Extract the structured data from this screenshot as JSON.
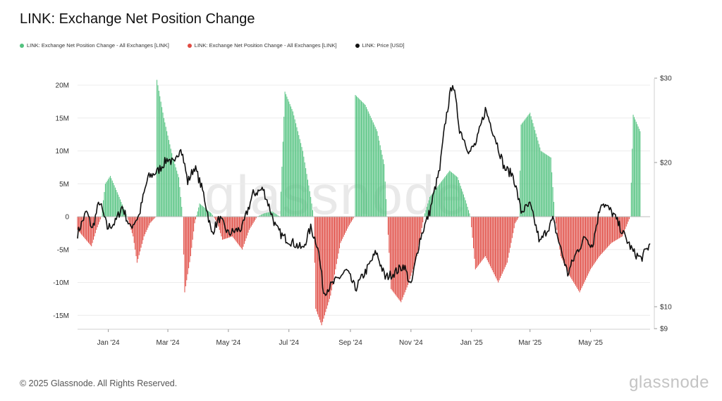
{
  "title": "LINK: Exchange Net Position Change",
  "legend": [
    {
      "label": "LINK: Exchange Net Position Change - All Exchanges [LINK]",
      "color": "#52c27f"
    },
    {
      "label": "LINK: Exchange Net Position Change - All Exchanges [LINK]",
      "color": "#e04b43"
    },
    {
      "label": "LINK: Price [USD]",
      "color": "#111111"
    }
  ],
  "watermark": "glassnode",
  "footer": "© 2025 Glassnode. All Rights Reserved.",
  "brand": "glassnode",
  "chart_data": {
    "type": "bar",
    "x_range": [
      "2023-12-01",
      "2025-06-30"
    ],
    "x_ticks": [
      "Jan '24",
      "Mar '24",
      "May '24",
      "Jul '24",
      "Sep '24",
      "Nov '24",
      "Jan '25",
      "Mar '25",
      "May '25"
    ],
    "y_left": {
      "ticks": [
        "20M",
        "15M",
        "10M",
        "5M",
        "0",
        "-5M",
        "-10M",
        "-15M"
      ],
      "min": -17000000,
      "max": 21500000
    },
    "y_right": {
      "ticks": [
        "$30",
        "$20",
        "$10",
        "$9"
      ],
      "log": true,
      "min": 9,
      "max": 30
    },
    "colors": {
      "positive": "#52c27f",
      "negative": "#e04b43",
      "price": "#111111"
    },
    "net_position_keypoints": [
      [
        "2023-12-01",
        -2000000
      ],
      [
        "2023-12-15",
        -4500000
      ],
      [
        "2023-12-20",
        -2000000
      ],
      [
        "2023-12-25",
        0
      ],
      [
        "2023-12-29",
        5000000
      ],
      [
        "2024-01-03",
        6200000
      ],
      [
        "2024-01-12",
        3000000
      ],
      [
        "2024-01-20",
        0
      ],
      [
        "2024-01-26",
        -3000000
      ],
      [
        "2024-01-30",
        -7000000
      ],
      [
        "2024-02-06",
        -3000000
      ],
      [
        "2024-02-12",
        -1000000
      ],
      [
        "2024-02-18",
        0
      ],
      [
        "2024-02-19",
        20800000
      ],
      [
        "2024-02-26",
        15000000
      ],
      [
        "2024-03-06",
        9000000
      ],
      [
        "2024-03-12",
        6000000
      ],
      [
        "2024-03-16",
        0
      ],
      [
        "2024-03-18",
        -11500000
      ],
      [
        "2024-03-24",
        -6000000
      ],
      [
        "2024-03-28",
        -1000000
      ],
      [
        "2024-04-02",
        2000000
      ],
      [
        "2024-04-14",
        500000
      ],
      [
        "2024-04-20",
        -1000000
      ],
      [
        "2024-04-25",
        -3500000
      ],
      [
        "2024-05-05",
        -3000000
      ],
      [
        "2024-05-15",
        -5000000
      ],
      [
        "2024-05-22",
        -2000000
      ],
      [
        "2024-05-30",
        0
      ],
      [
        "2024-06-06",
        500000
      ],
      [
        "2024-06-14",
        800000
      ],
      [
        "2024-06-22",
        0
      ],
      [
        "2024-06-27",
        19000000
      ],
      [
        "2024-07-05",
        16000000
      ],
      [
        "2024-07-15",
        10000000
      ],
      [
        "2024-07-23",
        3000000
      ],
      [
        "2024-07-26",
        0
      ],
      [
        "2024-07-28",
        -14000000
      ],
      [
        "2024-08-03",
        -16500000
      ],
      [
        "2024-08-12",
        -12000000
      ],
      [
        "2024-08-22",
        -4000000
      ],
      [
        "2024-08-30",
        -1500000
      ],
      [
        "2024-09-05",
        0
      ],
      [
        "2024-09-06",
        18500000
      ],
      [
        "2024-09-16",
        17000000
      ],
      [
        "2024-09-28",
        13000000
      ],
      [
        "2024-10-05",
        8000000
      ],
      [
        "2024-10-08",
        0
      ],
      [
        "2024-10-12",
        -11000000
      ],
      [
        "2024-10-22",
        -13000000
      ],
      [
        "2024-10-30",
        -10000000
      ],
      [
        "2024-11-07",
        -6000000
      ],
      [
        "2024-11-14",
        0
      ],
      [
        "2024-11-20",
        3000000
      ],
      [
        "2024-11-30",
        5000000
      ],
      [
        "2024-12-10",
        7000000
      ],
      [
        "2024-12-18",
        6000000
      ],
      [
        "2024-12-26",
        2500000
      ],
      [
        "2024-12-31",
        0
      ],
      [
        "2025-01-05",
        -8000000
      ],
      [
        "2025-01-15",
        -6000000
      ],
      [
        "2025-01-28",
        -10000000
      ],
      [
        "2025-02-06",
        -7000000
      ],
      [
        "2025-02-14",
        -1000000
      ],
      [
        "2025-02-18",
        0
      ],
      [
        "2025-02-20",
        14000000
      ],
      [
        "2025-03-01",
        15800000
      ],
      [
        "2025-03-12",
        10000000
      ],
      [
        "2025-03-22",
        9000000
      ],
      [
        "2025-03-26",
        0
      ],
      [
        "2025-04-01",
        -6000000
      ],
      [
        "2025-04-10",
        -9000000
      ],
      [
        "2025-04-20",
        -11500000
      ],
      [
        "2025-05-01",
        -8000000
      ],
      [
        "2025-05-10",
        -6000000
      ],
      [
        "2025-05-22",
        -4000000
      ],
      [
        "2025-06-02",
        -3000000
      ],
      [
        "2025-06-10",
        0
      ],
      [
        "2025-06-13",
        15500000
      ],
      [
        "2025-06-20",
        13000000
      ]
    ],
    "price_keypoints": [
      [
        "2023-12-01",
        14.2
      ],
      [
        "2023-12-10",
        15.8
      ],
      [
        "2023-12-16",
        14.5
      ],
      [
        "2023-12-23",
        16.6
      ],
      [
        "2023-12-31",
        14.6
      ],
      [
        "2024-01-08",
        15.0
      ],
      [
        "2024-01-15",
        16.2
      ],
      [
        "2024-01-23",
        14.6
      ],
      [
        "2024-02-01",
        15.5
      ],
      [
        "2024-02-10",
        18.6
      ],
      [
        "2024-02-20",
        19.2
      ],
      [
        "2024-03-01",
        20.4
      ],
      [
        "2024-03-08",
        19.8
      ],
      [
        "2024-03-14",
        21.7
      ],
      [
        "2024-03-21",
        18.2
      ],
      [
        "2024-03-28",
        19.6
      ],
      [
        "2024-04-06",
        17.2
      ],
      [
        "2024-04-14",
        14.2
      ],
      [
        "2024-04-22",
        15.3
      ],
      [
        "2024-05-01",
        14.2
      ],
      [
        "2024-05-15",
        14.6
      ],
      [
        "2024-05-26",
        17.2
      ],
      [
        "2024-06-05",
        17.6
      ],
      [
        "2024-06-18",
        14.6
      ],
      [
        "2024-06-25",
        14.0
      ],
      [
        "2024-07-05",
        13.6
      ],
      [
        "2024-07-15",
        13.2
      ],
      [
        "2024-07-23",
        14.6
      ],
      [
        "2024-07-30",
        13.4
      ],
      [
        "2024-08-05",
        10.7
      ],
      [
        "2024-08-15",
        11.2
      ],
      [
        "2024-08-28",
        11.9
      ],
      [
        "2024-09-06",
        10.9
      ],
      [
        "2024-09-18",
        12.0
      ],
      [
        "2024-09-27",
        13.0
      ],
      [
        "2024-10-06",
        11.5
      ],
      [
        "2024-10-16",
        11.8
      ],
      [
        "2024-10-25",
        12.2
      ],
      [
        "2024-11-01",
        11.0
      ],
      [
        "2024-11-10",
        13.8
      ],
      [
        "2024-11-20",
        15.8
      ],
      [
        "2024-11-30",
        19.3
      ],
      [
        "2024-12-06",
        24.5
      ],
      [
        "2024-12-13",
        29.5
      ],
      [
        "2024-12-20",
        23.5
      ],
      [
        "2024-12-30",
        21.0
      ],
      [
        "2025-01-06",
        22.0
      ],
      [
        "2025-01-15",
        25.8
      ],
      [
        "2025-01-25",
        22.5
      ],
      [
        "2025-02-03",
        19.5
      ],
      [
        "2025-02-12",
        18.8
      ],
      [
        "2025-02-20",
        15.8
      ],
      [
        "2025-03-01",
        16.3
      ],
      [
        "2025-03-11",
        13.6
      ],
      [
        "2025-03-24",
        15.2
      ],
      [
        "2025-04-01",
        13.2
      ],
      [
        "2025-04-08",
        11.7
      ],
      [
        "2025-04-17",
        13.0
      ],
      [
        "2025-04-26",
        14.0
      ],
      [
        "2025-05-03",
        13.4
      ],
      [
        "2025-05-12",
        16.6
      ],
      [
        "2025-05-24",
        15.6
      ],
      [
        "2025-06-03",
        14.2
      ],
      [
        "2025-06-13",
        13.0
      ],
      [
        "2025-06-21",
        12.6
      ],
      [
        "2025-06-30",
        13.5
      ]
    ]
  }
}
